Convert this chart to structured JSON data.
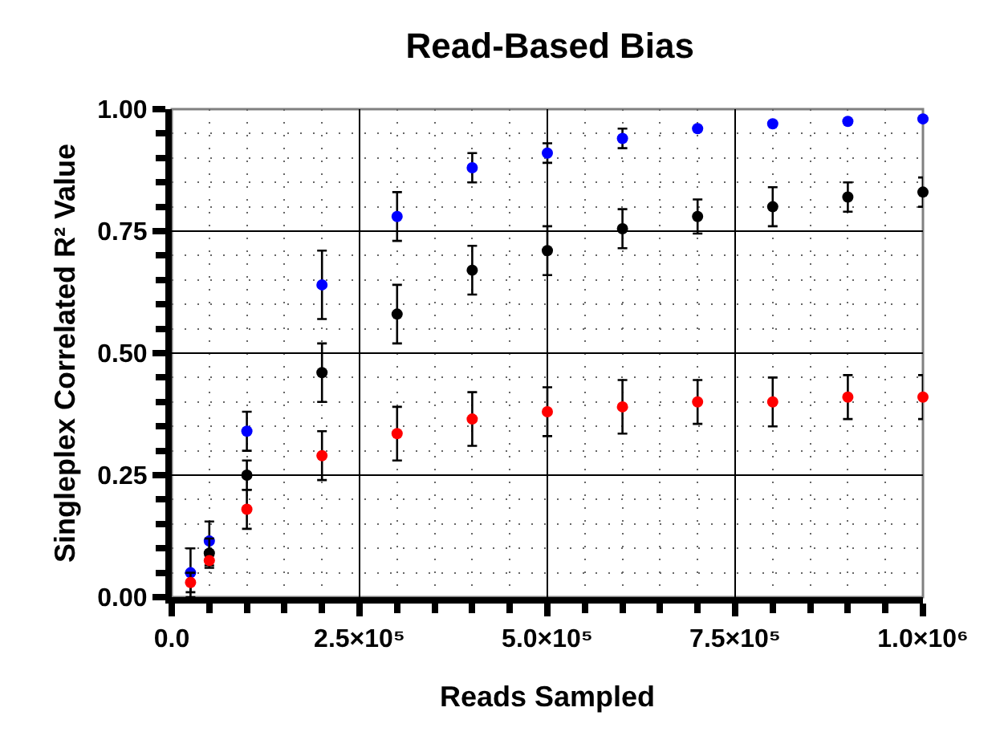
{
  "chart_data": {
    "type": "scatter",
    "title": "Read-Based Bias",
    "xlabel": "Reads Sampled",
    "ylabel": "Singleplex Correlated R² Value",
    "x": [
      25000,
      50000,
      100000,
      200000,
      300000,
      400000,
      500000,
      600000,
      700000,
      800000,
      900000,
      1000000
    ],
    "series": [
      {
        "color": "#0000ff",
        "values": [
          0.05,
          0.115,
          0.34,
          0.64,
          0.78,
          0.88,
          0.91,
          0.94,
          0.96,
          0.97,
          0.975,
          0.98
        ],
        "errors": [
          0.05,
          0.04,
          0.04,
          0.07,
          0.05,
          0.03,
          0.02,
          0.02,
          null,
          null,
          null,
          null
        ]
      },
      {
        "color": "#000000",
        "values": [
          null,
          0.09,
          0.25,
          0.46,
          0.58,
          0.67,
          0.71,
          0.755,
          0.78,
          0.8,
          0.82,
          0.83
        ],
        "errors": [
          null,
          0.03,
          0.03,
          0.06,
          0.06,
          0.05,
          0.05,
          0.04,
          0.035,
          0.04,
          0.03,
          0.03
        ]
      },
      {
        "color": "#ff0000",
        "values": [
          0.03,
          0.075,
          0.18,
          0.29,
          0.335,
          0.365,
          0.38,
          0.39,
          0.4,
          0.4,
          0.41,
          0.41
        ],
        "errors": [
          0.02,
          0.01,
          0.04,
          0.05,
          0.055,
          0.055,
          0.05,
          0.055,
          0.045,
          0.05,
          0.045,
          0.045
        ]
      }
    ],
    "xlim": [
      0,
      1000000
    ],
    "xticks": [
      {
        "value": 0,
        "label": "0.0"
      },
      {
        "value": 250000,
        "label": "2.5×10⁵"
      },
      {
        "value": 500000,
        "label": "5.0×10⁵"
      },
      {
        "value": 750000,
        "label": "7.5×10⁵"
      },
      {
        "value": 1000000,
        "label": "1.0×10⁶"
      }
    ],
    "ylim": [
      0,
      1
    ],
    "yticks": [
      {
        "value": 0,
        "label": "0.00"
      },
      0.25,
      {
        "value": 0.5,
        "label": "0.50"
      },
      0.75,
      {
        "value": 1,
        "label": "1.00"
      }
    ],
    "grid": true,
    "marker": "circle"
  }
}
